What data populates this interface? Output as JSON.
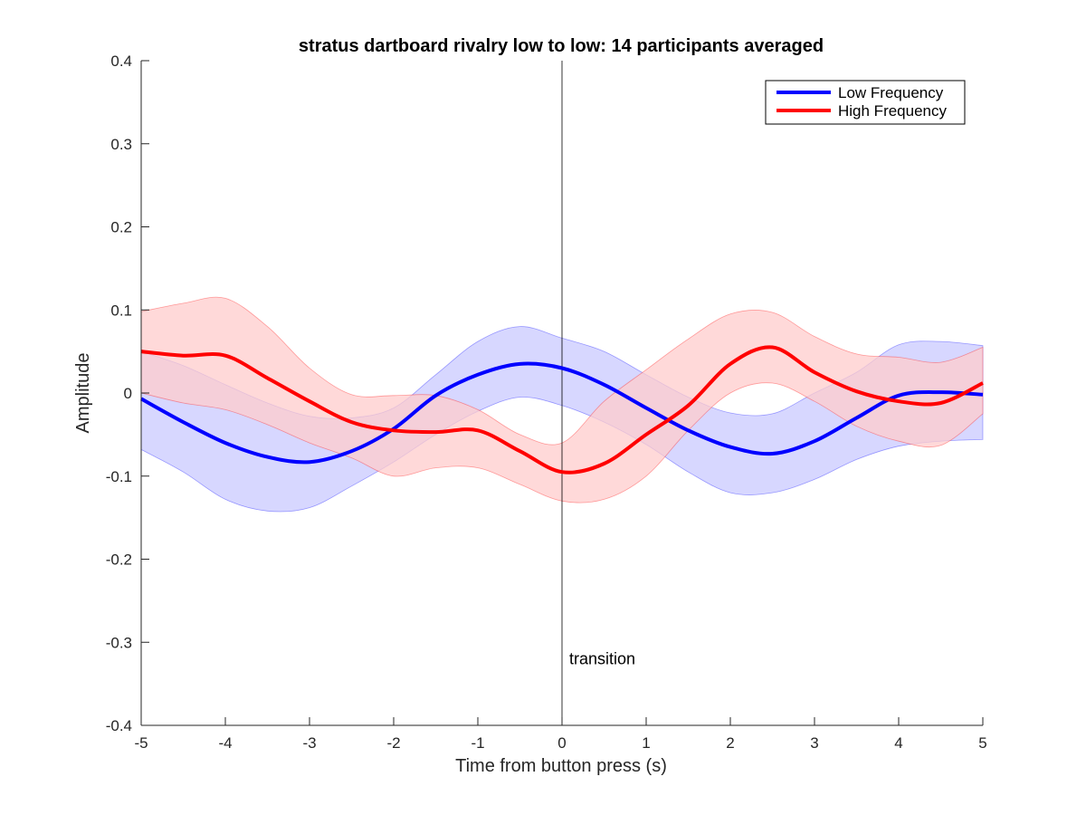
{
  "chart_data": {
    "type": "line",
    "title": "stratus dartboard rivalry low to low: 14 participants averaged",
    "xlabel": "Time from button press (s)",
    "ylabel": "Amplitude",
    "xlim": [
      -5,
      5
    ],
    "ylim": [
      -0.4,
      0.4
    ],
    "xticks": [
      -5,
      -4,
      -3,
      -2,
      -1,
      0,
      1,
      2,
      3,
      4,
      5
    ],
    "yticks": [
      -0.4,
      -0.3,
      -0.2,
      -0.1,
      0,
      0.1,
      0.2,
      0.3,
      0.4
    ],
    "grid": false,
    "legend_position": "top-right",
    "annotation": {
      "text": "transition",
      "x": 0
    },
    "x": [
      -5,
      -4.5,
      -4,
      -3.5,
      -3,
      -2.5,
      -2,
      -1.5,
      -1,
      -0.5,
      0,
      0.5,
      1,
      1.5,
      2,
      2.5,
      3,
      3.5,
      4,
      4.5,
      5
    ],
    "series": [
      {
        "name": "Low Frequency",
        "color": "#0000ff",
        "band_color": "#c9c9ff",
        "values": [
          -0.007,
          -0.035,
          -0.06,
          -0.077,
          -0.083,
          -0.07,
          -0.043,
          -0.003,
          0.022,
          0.035,
          0.03,
          0.01,
          -0.018,
          -0.045,
          -0.065,
          -0.073,
          -0.058,
          -0.03,
          -0.003,
          0.001,
          -0.002
        ],
        "upper": [
          0.05,
          0.033,
          0.01,
          -0.012,
          -0.028,
          -0.03,
          -0.018,
          0.022,
          0.062,
          0.08,
          0.066,
          0.05,
          0.022,
          -0.005,
          -0.024,
          -0.025,
          0.0,
          0.025,
          0.058,
          0.062,
          0.057
        ],
        "lower": [
          -0.068,
          -0.095,
          -0.128,
          -0.142,
          -0.138,
          -0.112,
          -0.083,
          -0.05,
          -0.022,
          -0.005,
          -0.015,
          -0.035,
          -0.062,
          -0.095,
          -0.12,
          -0.12,
          -0.104,
          -0.08,
          -0.064,
          -0.058,
          -0.056
        ]
      },
      {
        "name": "High Frequency",
        "color": "#ff0000",
        "band_color": "#ffcccc",
        "values": [
          0.05,
          0.045,
          0.045,
          0.018,
          -0.01,
          -0.035,
          -0.045,
          -0.047,
          -0.045,
          -0.07,
          -0.095,
          -0.085,
          -0.05,
          -0.015,
          0.035,
          0.055,
          0.025,
          0.002,
          -0.01,
          -0.012,
          0.012
        ],
        "upper": [
          0.098,
          0.108,
          0.114,
          0.08,
          0.03,
          -0.002,
          -0.003,
          -0.003,
          -0.02,
          -0.05,
          -0.06,
          -0.01,
          0.028,
          0.065,
          0.095,
          0.097,
          0.068,
          0.047,
          0.043,
          0.037,
          0.055
        ],
        "lower": [
          0.0,
          -0.012,
          -0.02,
          -0.038,
          -0.06,
          -0.078,
          -0.1,
          -0.09,
          -0.09,
          -0.11,
          -0.13,
          -0.128,
          -0.1,
          -0.045,
          0.0,
          0.012,
          -0.01,
          -0.04,
          -0.058,
          -0.063,
          -0.025
        ]
      }
    ]
  }
}
